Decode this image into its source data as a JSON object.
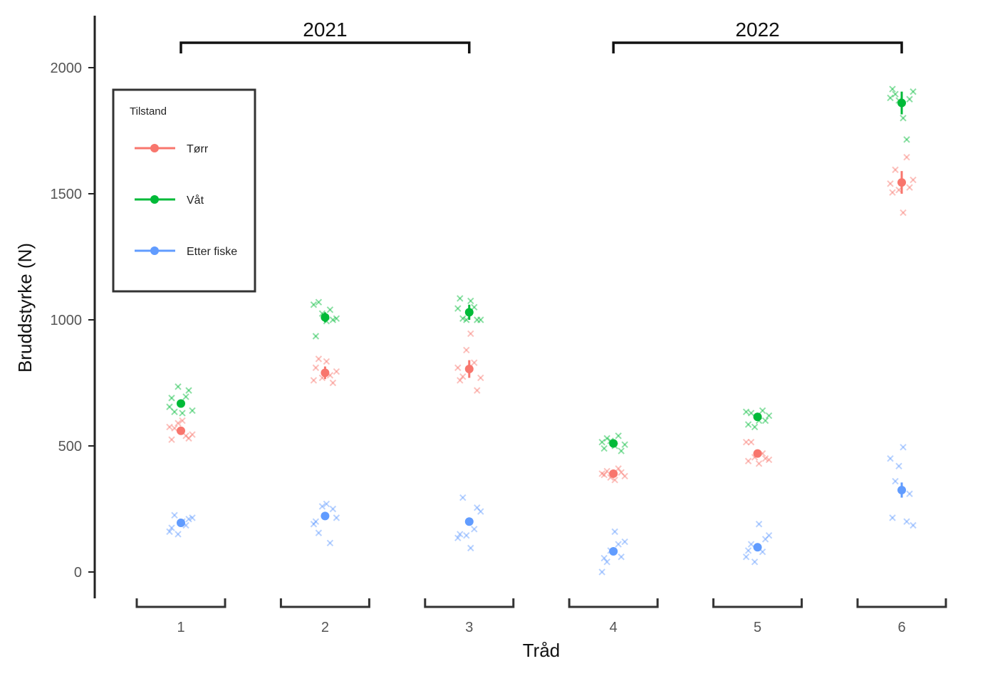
{
  "chart_data": {
    "type": "scatter",
    "xlabel": "Tråd",
    "ylabel": "Bruddstyrke (N)",
    "categories": [
      "1",
      "2",
      "3",
      "4",
      "5",
      "6"
    ],
    "yticks": [
      0,
      500,
      1000,
      1500,
      2000
    ],
    "ylim": [
      -100,
      2200
    ],
    "legend": {
      "title": "Tilstand",
      "position": "top-left",
      "entries": [
        "Tørr",
        "Våt",
        "Etter fiske"
      ]
    },
    "groups": [
      {
        "label": "2021",
        "from": 1,
        "to": 3
      },
      {
        "label": "2022",
        "from": 4,
        "to": 6
      }
    ],
    "series": [
      {
        "name": "Tørr",
        "color": "#F8766D",
        "means": [
          560,
          790,
          805,
          390,
          470,
          1545
        ],
        "errors": [
          15,
          25,
          35,
          10,
          12,
          45
        ],
        "points": [
          [
            575,
            590,
            530,
            525,
            600,
            545,
            570,
            540
          ],
          [
            845,
            780,
            760,
            770,
            750,
            810,
            835,
            795
          ],
          [
            945,
            770,
            775,
            830,
            810,
            880,
            720,
            760
          ],
          [
            395,
            385,
            365,
            380,
            400,
            410,
            390,
            375
          ],
          [
            515,
            455,
            450,
            440,
            430,
            445,
            515,
            470
          ],
          [
            1595,
            1645,
            1540,
            1515,
            1525,
            1505,
            1425,
            1555
          ]
        ]
      },
      {
        "name": "Våt",
        "color": "#00BA38",
        "means": [
          668,
          1010,
          1030,
          510,
          615,
          1860
        ],
        "errors": [
          15,
          20,
          30,
          12,
          15,
          45
        ],
        "points": [
          [
            695,
            655,
            735,
            720,
            690,
            630,
            640,
            635
          ],
          [
            1005,
            1070,
            1040,
            1060,
            1025,
            1000,
            935,
            995
          ],
          [
            1085,
            1075,
            1000,
            1005,
            1050,
            1045,
            1000,
            1000
          ],
          [
            520,
            480,
            490,
            500,
            505,
            530,
            540,
            515
          ],
          [
            640,
            635,
            575,
            600,
            585,
            600,
            620,
            630
          ],
          [
            1905,
            1895,
            1715,
            1880,
            1870,
            1875,
            1915,
            1800
          ]
        ]
      },
      {
        "name": "Etter fiske",
        "color": "#619CFF",
        "means": [
          195,
          222,
          200,
          82,
          98,
          325
        ],
        "errors": [
          8,
          10,
          15,
          8,
          8,
          30
        ],
        "points": [
          [
            225,
            185,
            160,
            150,
            210,
            175,
            200,
            215
          ],
          [
            270,
            215,
            155,
            115,
            190,
            260,
            250,
            200
          ],
          [
            255,
            150,
            95,
            240,
            295,
            170,
            135,
            145
          ],
          [
            0,
            85,
            60,
            55,
            160,
            120,
            40,
            110
          ],
          [
            110,
            80,
            60,
            40,
            130,
            85,
            190,
            145
          ],
          [
            495,
            185,
            360,
            200,
            450,
            420,
            310,
            215
          ]
        ]
      }
    ]
  }
}
